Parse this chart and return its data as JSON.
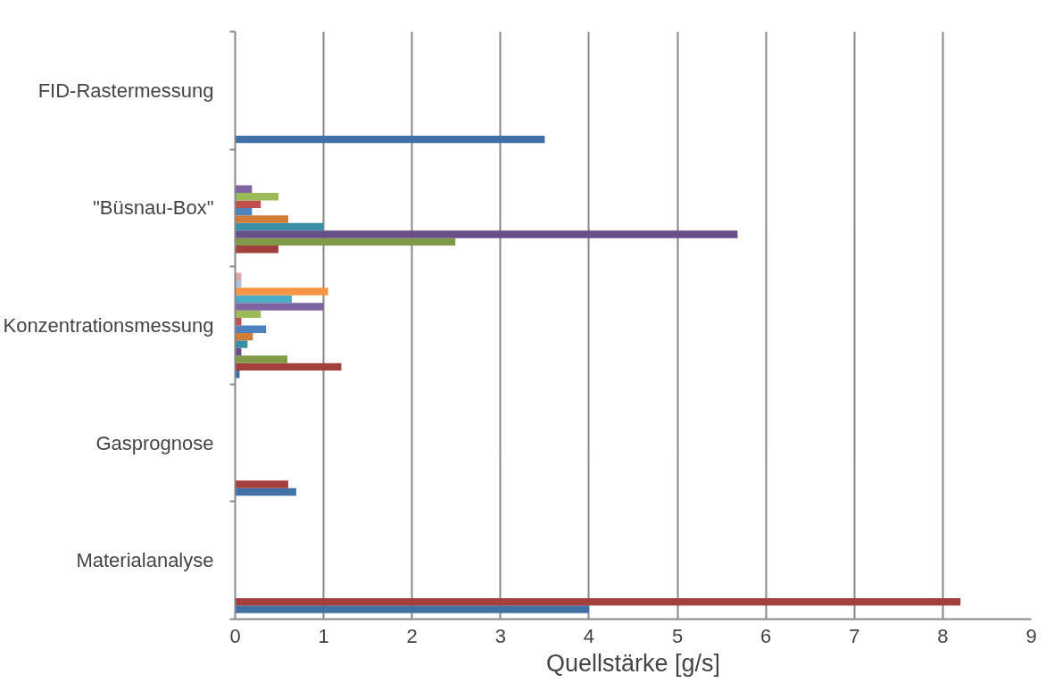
{
  "chart_data": {
    "type": "bar",
    "orientation": "horizontal",
    "xlabel": "Quellstärke [g/s]",
    "categories": [
      "FID-Rastermessung",
      "\"Büsnau-Box\"",
      "Konzentrationsmessung",
      "Gasprognose",
      "Materialanalyse"
    ],
    "xlim": [
      0,
      9
    ],
    "xticks": [
      0,
      1,
      2,
      3,
      4,
      5,
      6,
      7,
      8,
      9
    ],
    "grid": "x",
    "series": [
      {
        "color": "#4170a6",
        "values": [
          3.5,
          null,
          0.05,
          0.69,
          4.0
        ]
      },
      {
        "color": "#a3403d",
        "values": [
          null,
          0.49,
          1.2,
          0.6,
          8.2
        ]
      },
      {
        "color": "#809a47",
        "values": [
          null,
          2.49,
          0.59,
          null,
          null
        ]
      },
      {
        "color": "#684f8a",
        "values": [
          null,
          5.68,
          0.07,
          null,
          null
        ]
      },
      {
        "color": "#3a8ea6",
        "values": [
          null,
          1.0,
          0.14,
          null,
          null
        ]
      },
      {
        "color": "#d07c36",
        "values": [
          null,
          0.6,
          0.2,
          null,
          null
        ]
      },
      {
        "color": "#4f81bd",
        "values": [
          null,
          0.19,
          0.35,
          null,
          null
        ]
      },
      {
        "color": "#c0504d",
        "values": [
          null,
          0.29,
          0.07,
          null,
          null
        ]
      },
      {
        "color": "#9bbb59",
        "values": [
          null,
          0.49,
          0.29,
          null,
          null
        ]
      },
      {
        "color": "#8064a2",
        "values": [
          null,
          0.19,
          1.0,
          null,
          null
        ]
      },
      {
        "color": "#4bacc6",
        "values": [
          null,
          null,
          0.64,
          null,
          null
        ]
      },
      {
        "color": "#f79646",
        "values": [
          null,
          null,
          1.05,
          null,
          null
        ]
      },
      {
        "color": "#b0c0de",
        "values": [
          null,
          null,
          0.07,
          null,
          null
        ]
      },
      {
        "color": "#dfa9a9",
        "values": [
          null,
          null,
          0.07,
          null,
          null
        ]
      }
    ]
  }
}
